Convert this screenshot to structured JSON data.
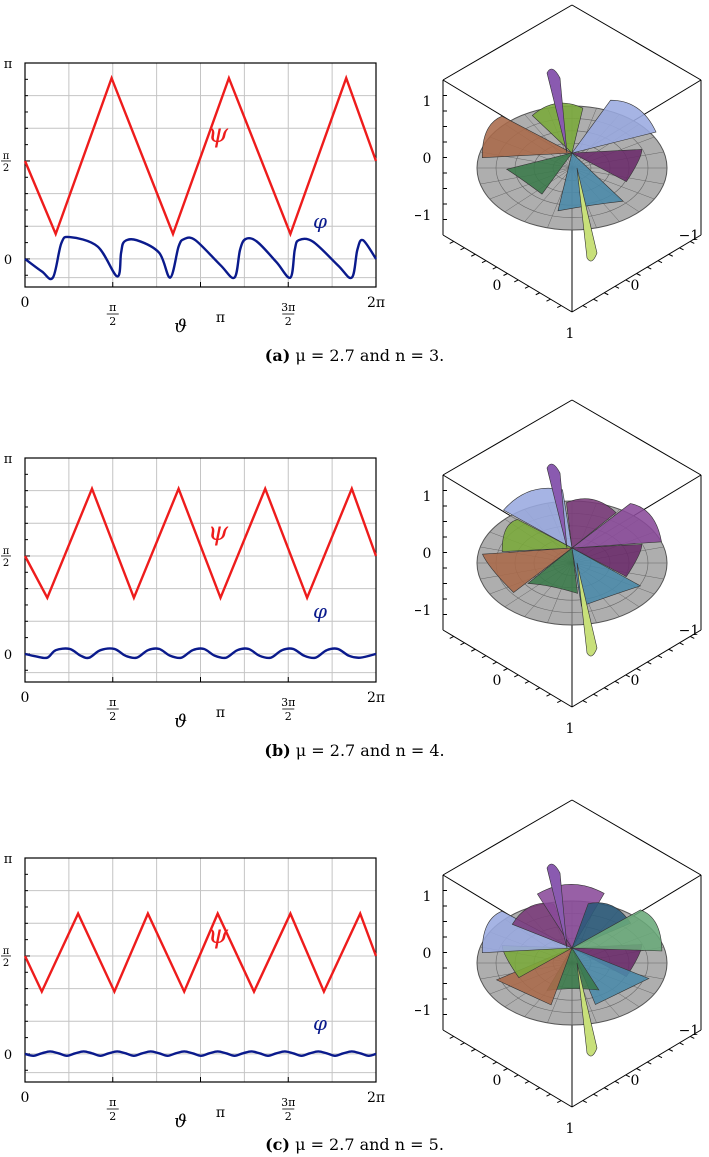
{
  "colors": {
    "psi": "#ee1c1c",
    "phi": "#0a1a8c",
    "grid": "#c4c4c4",
    "axis": "#000000",
    "disk": "#9a9a9a"
  },
  "panels": [
    {
      "caption_label": "(a)",
      "caption_text": "μ = 2.7 and n = 3.",
      "sphere_ticks": [
        "1",
        "0",
        "−1",
        "0",
        "0",
        "1",
        "−1"
      ]
    },
    {
      "caption_label": "(b)",
      "caption_text": "μ = 2.7 and n = 4.",
      "sphere_ticks": [
        "1",
        "0",
        "−1",
        "0",
        "0",
        "1",
        "−1"
      ]
    },
    {
      "caption_label": "(c)",
      "caption_text": "μ = 2.7 and n = 5.",
      "sphere_ticks": [
        "1",
        "0",
        "−1",
        "0",
        "0",
        "1",
        "−1"
      ]
    }
  ],
  "chart_data": [
    {
      "type": "line",
      "xlabel": "ϑ",
      "xlim": [
        0,
        6.2832
      ],
      "ylim": [
        -0.45,
        3.1416
      ],
      "xticks": [
        0,
        1.5708,
        3.1416,
        4.7124,
        6.2832
      ],
      "xtick_labels": [
        "0",
        "π/2",
        "π",
        "3π/2",
        "2π"
      ],
      "yticks": [
        0,
        1.5708,
        3.1416
      ],
      "ytick_labels": [
        "0",
        "π/2",
        "π"
      ],
      "grid": true,
      "series": [
        {
          "name": "ψ",
          "x": [
            0,
            0.55,
            1.55,
            2.65,
            3.65,
            4.75,
            5.75,
            6.2832
          ],
          "y": [
            1.5708,
            0.4,
            2.9,
            0.4,
            2.9,
            0.4,
            2.9,
            1.5708
          ]
        },
        {
          "name": "φ",
          "x": [
            0,
            0.3,
            0.5,
            0.65,
            0.8,
            1.3,
            1.65,
            1.72,
            1.78,
            2.0,
            2.4,
            2.6,
            2.75,
            2.85,
            3.05,
            3.5,
            3.75,
            3.85,
            3.95,
            4.15,
            4.5,
            4.75,
            4.83,
            4.9,
            5.15,
            5.6,
            5.85,
            5.95,
            6.05,
            6.2832
          ],
          "y": [
            0,
            -0.2,
            -0.3,
            0.25,
            0.35,
            0.2,
            -0.28,
            0.1,
            0.28,
            0.3,
            0.1,
            -0.3,
            0.2,
            0.32,
            0.3,
            -0.1,
            -0.3,
            0.15,
            0.32,
            0.28,
            -0.05,
            -0.3,
            0.15,
            0.3,
            0.28,
            -0.1,
            -0.3,
            0.15,
            0.3,
            0
          ]
        }
      ],
      "series_labels": [
        "ψ",
        "φ"
      ]
    },
    {
      "type": "line",
      "xlabel": "ϑ",
      "xlim": [
        0,
        6.2832
      ],
      "ylim": [
        -0.45,
        3.1416
      ],
      "xticks": [
        0,
        1.5708,
        3.1416,
        4.7124,
        6.2832
      ],
      "xtick_labels": [
        "0",
        "π/2",
        "π",
        "3π/2",
        "2π"
      ],
      "yticks": [
        0,
        1.5708,
        3.1416
      ],
      "ytick_labels": [
        "0",
        "π/2",
        "π"
      ],
      "grid": true,
      "series": [
        {
          "name": "ψ",
          "x": [
            0,
            0.4,
            1.2,
            1.95,
            2.75,
            3.5,
            4.3,
            5.05,
            5.85,
            6.2832
          ],
          "y": [
            1.5708,
            0.9,
            2.65,
            0.9,
            2.65,
            0.9,
            2.65,
            0.9,
            2.65,
            1.5708
          ]
        },
        {
          "name": "φ",
          "x": [
            0,
            0.2,
            0.4,
            0.55,
            0.8,
            1.0,
            1.15,
            1.35,
            1.6,
            1.8,
            2.0,
            2.2,
            2.4,
            2.6,
            2.8,
            3.0,
            3.2,
            3.4,
            3.6,
            3.8,
            4.0,
            4.2,
            4.4,
            4.6,
            4.8,
            5.0,
            5.2,
            5.4,
            5.6,
            5.8,
            6.0,
            6.2832
          ],
          "y": [
            0,
            -0.04,
            -0.06,
            0.06,
            0.08,
            -0.03,
            -0.06,
            0.06,
            0.08,
            -0.03,
            -0.06,
            0.06,
            0.08,
            -0.03,
            -0.06,
            0.06,
            0.08,
            -0.03,
            -0.06,
            0.06,
            0.08,
            -0.03,
            -0.06,
            0.06,
            0.08,
            -0.03,
            -0.06,
            0.06,
            0.08,
            -0.03,
            -0.06,
            0
          ]
        }
      ],
      "series_labels": [
        "ψ",
        "φ"
      ]
    },
    {
      "type": "line",
      "xlabel": "ϑ",
      "xlim": [
        0,
        6.2832
      ],
      "ylim": [
        -0.45,
        3.1416
      ],
      "xticks": [
        0,
        1.5708,
        3.1416,
        4.7124,
        6.2832
      ],
      "xtick_labels": [
        "0",
        "π/2",
        "π",
        "3π/2",
        "2π"
      ],
      "yticks": [
        0,
        1.5708,
        3.1416
      ],
      "ytick_labels": [
        "0",
        "π/2",
        "π"
      ],
      "grid": true,
      "series": [
        {
          "name": "ψ",
          "x": [
            0,
            0.3,
            0.95,
            1.6,
            2.2,
            2.85,
            3.45,
            4.1,
            4.75,
            5.35,
            6.0,
            6.2832
          ],
          "y": [
            1.5708,
            1.0,
            2.25,
            1.0,
            2.25,
            1.0,
            2.25,
            1.0,
            2.25,
            1.0,
            2.25,
            1.5708
          ]
        },
        {
          "name": "φ",
          "x": [
            0,
            0.15,
            0.3,
            0.45,
            0.6,
            0.75,
            0.9,
            1.05,
            1.2,
            1.35,
            1.5,
            1.65,
            1.8,
            1.95,
            2.1,
            2.25,
            2.4,
            2.55,
            2.7,
            2.85,
            3.0,
            3.15,
            3.3,
            3.45,
            3.6,
            3.75,
            3.9,
            4.05,
            4.2,
            4.35,
            4.5,
            4.65,
            4.8,
            4.95,
            5.1,
            5.25,
            5.4,
            5.55,
            5.7,
            5.85,
            6.0,
            6.15,
            6.2832
          ],
          "y": [
            0,
            -0.03,
            0.01,
            0.04,
            0.01,
            -0.03,
            0.01,
            0.04,
            0.01,
            -0.03,
            0.01,
            0.04,
            0.01,
            -0.03,
            0.01,
            0.04,
            0.01,
            -0.03,
            0.01,
            0.04,
            0.01,
            -0.03,
            0.01,
            0.04,
            0.01,
            -0.03,
            0.01,
            0.04,
            0.01,
            -0.03,
            0.01,
            0.04,
            0.01,
            -0.03,
            0.01,
            0.04,
            0.01,
            -0.03,
            0.01,
            0.04,
            0.01,
            -0.03,
            0
          ]
        }
      ],
      "series_labels": [
        "ψ",
        "φ"
      ]
    }
  ]
}
